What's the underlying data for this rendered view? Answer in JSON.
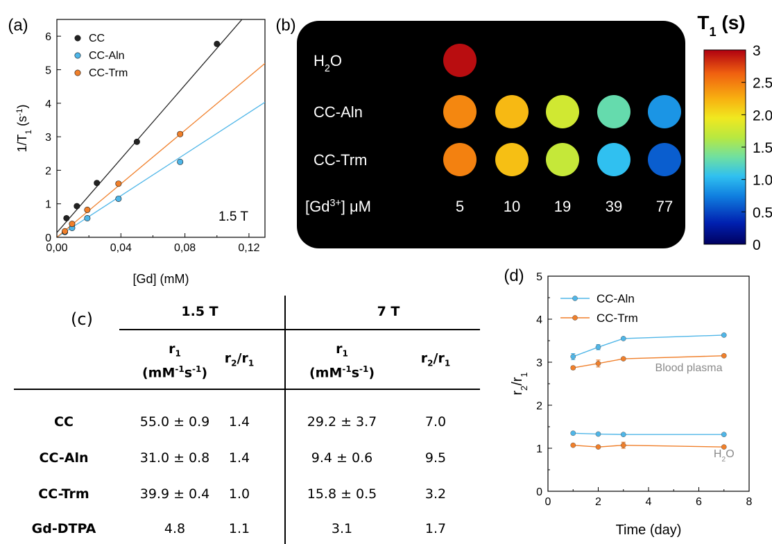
{
  "colors": {
    "cc": "#222222",
    "cc_aln": "#4fb6e8",
    "cc_trm": "#f07f2a",
    "annotation_gray": "#8a8a8a",
    "mri_background": "#000000"
  },
  "chart_data": [
    {
      "id": "panel-a",
      "type": "scatter",
      "panel_label": "(a)",
      "xlabel": "[Gd] (mM)",
      "ylabel": "1/T1 (s-1)",
      "xlim": [
        0,
        0.13
      ],
      "ylim": [
        0,
        6.5
      ],
      "x_ticks": [
        "0,00",
        "0,04",
        "0,08",
        "0,12"
      ],
      "x_tick_values": [
        0,
        0.04,
        0.08,
        0.12
      ],
      "y_ticks": [
        "0",
        "1",
        "2",
        "3",
        "4",
        "5",
        "6"
      ],
      "annotation": "1.5 T",
      "legend_position": "top-left",
      "grid": false,
      "series": [
        {
          "name": "CC",
          "color": "#222222",
          "x": [
            0.006,
            0.0125,
            0.025,
            0.05,
            0.1
          ],
          "y": [
            0.57,
            0.93,
            1.62,
            2.85,
            5.77
          ],
          "fit": {
            "slope": 55.0,
            "intercept": 0.14
          }
        },
        {
          "name": "CC-Aln",
          "color": "#4fb6e8",
          "x": [
            0.005,
            0.0095,
            0.019,
            0.0385,
            0.077
          ],
          "y": [
            0.16,
            0.28,
            0.57,
            1.15,
            2.25
          ],
          "fit": {
            "slope": 31.0,
            "intercept": 0.0
          }
        },
        {
          "name": "CC-Trm",
          "color": "#f07f2a",
          "x": [
            0.005,
            0.0095,
            0.019,
            0.0385,
            0.077
          ],
          "y": [
            0.18,
            0.4,
            0.82,
            1.6,
            3.08
          ],
          "fit": {
            "slope": 39.9,
            "intercept": 0.0
          }
        }
      ]
    },
    {
      "id": "panel-b",
      "type": "heatmap",
      "panel_label": "(b)",
      "colorbar_title": "T1 (s)",
      "colorbar_range": [
        0,
        3
      ],
      "colorbar_ticks": [
        "0",
        "0.5",
        "1.0",
        "1.5",
        "2.0",
        "2.5",
        "3"
      ],
      "rows": [
        {
          "label": "H2O",
          "values": [
            2.95
          ]
        },
        {
          "label": "CC-Aln",
          "values": [
            2.45,
            2.2,
            1.78,
            1.3,
            0.85
          ]
        },
        {
          "label": "CC-Trm",
          "values": [
            2.48,
            2.17,
            1.72,
            1.05,
            0.6
          ]
        }
      ],
      "columns_label": "[Gd3+]  μM",
      "columns": [
        "5",
        "10",
        "19",
        "39",
        "77"
      ]
    },
    {
      "id": "panel-c",
      "type": "table",
      "panel_label": "(c)",
      "field_groups": [
        "1.5 T",
        "7 T"
      ],
      "column_headers": [
        "r1 (mM-1s-1)",
        "r2/r1",
        "r1 (mM-1s-1)",
        "r2/r1"
      ],
      "rows": [
        {
          "label": "CC",
          "cells": [
            "55.0 ± 0.9",
            "1.4",
            "29.2 ± 3.7",
            "7.0"
          ]
        },
        {
          "label": "CC-Aln",
          "cells": [
            "31.0 ± 0.8",
            "1.4",
            "9.4 ± 0.6",
            "9.5"
          ]
        },
        {
          "label": "CC-Trm",
          "cells": [
            "39.9 ± 0.4",
            "1.0",
            "15.8 ± 0.5",
            "3.2"
          ]
        },
        {
          "label": "Gd-DTPA",
          "cells": [
            "4.8",
            "1.1",
            "3.1",
            "1.7"
          ]
        }
      ]
    },
    {
      "id": "panel-d",
      "type": "line",
      "panel_label": "(d)",
      "xlabel": "Time (day)",
      "ylabel": "r2/r1",
      "xlim": [
        0,
        8
      ],
      "ylim": [
        0,
        5
      ],
      "x_ticks": [
        "0",
        "2",
        "4",
        "6",
        "8"
      ],
      "y_ticks": [
        "0",
        "1",
        "2",
        "3",
        "4",
        "5"
      ],
      "legend_position": "top-left",
      "grid": false,
      "annotations": [
        {
          "text": "Blood plasma",
          "x": 5.6,
          "y": 2.6
        },
        {
          "text": "H2O",
          "x": 7.0,
          "y": 0.6
        }
      ],
      "series": [
        {
          "name": "CC-Aln",
          "group": "Blood plasma",
          "color": "#4fb6e8",
          "x": [
            1,
            2,
            3,
            7
          ],
          "y": [
            3.13,
            3.35,
            3.55,
            3.63
          ],
          "err": [
            0.07,
            0.06,
            0.03,
            0.03
          ]
        },
        {
          "name": "CC-Trm",
          "group": "Blood plasma",
          "color": "#f07f2a",
          "x": [
            1,
            2,
            3,
            7
          ],
          "y": [
            2.87,
            2.97,
            3.08,
            3.15
          ],
          "err": [
            0.04,
            0.08,
            0.03,
            0.03
          ]
        },
        {
          "name": "",
          "group": "H2O",
          "color": "#4fb6e8",
          "x": [
            1,
            2,
            3,
            7
          ],
          "y": [
            1.35,
            1.33,
            1.32,
            1.32
          ],
          "err": [
            0.03,
            0.03,
            0.03,
            0.03
          ]
        },
        {
          "name": "",
          "group": "H2O",
          "color": "#f07f2a",
          "x": [
            1,
            2,
            3,
            7
          ],
          "y": [
            1.07,
            1.03,
            1.07,
            1.03
          ],
          "err": [
            0.03,
            0.03,
            0.07,
            0.03
          ]
        }
      ]
    }
  ]
}
